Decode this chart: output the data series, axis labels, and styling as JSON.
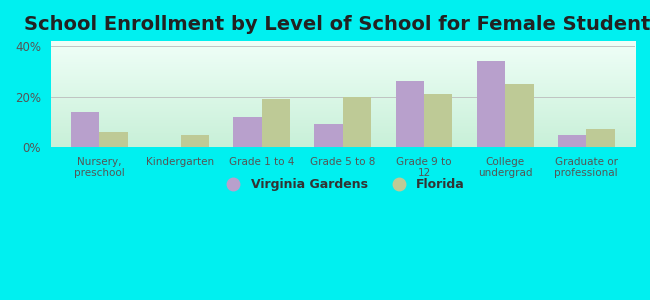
{
  "title": "School Enrollment by Level of School for Female Students",
  "categories": [
    "Nursery,\npreschool",
    "Kindergarten",
    "Grade 1 to 4",
    "Grade 5 to 8",
    "Grade 9 to\n12",
    "College\nundergrad",
    "Graduate or\nprofessional"
  ],
  "virginia_gardens": [
    14,
    0,
    12,
    9,
    26,
    34,
    5
  ],
  "florida": [
    6,
    5,
    19,
    20,
    21,
    25,
    7
  ],
  "color_vg": "#b8a0cc",
  "color_fl": "#beca96",
  "legend_vg": "Virginia Gardens",
  "legend_fl": "Florida",
  "ylim": [
    0,
    42
  ],
  "yticks": [
    0,
    20,
    40
  ],
  "ytick_labels": [
    "0%",
    "20%",
    "40%"
  ],
  "background_color": "#00f0f0",
  "title_fontsize": 14,
  "bar_width": 0.35,
  "gradient_top": "#f0fff8",
  "gradient_bottom": "#c8f0d8"
}
